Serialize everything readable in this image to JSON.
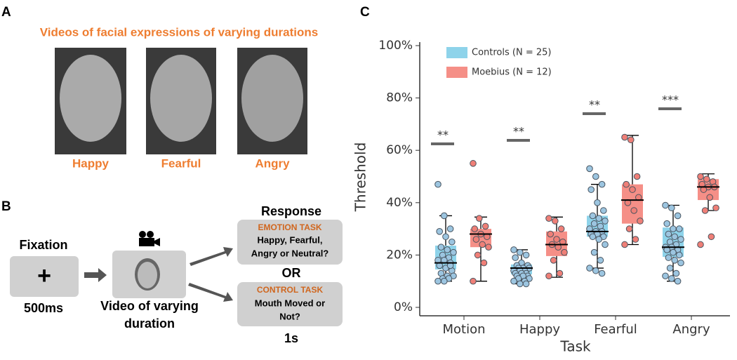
{
  "panel_a": {
    "label": "A",
    "title": "Videos of facial expressions of varying durations",
    "faces": [
      "Happy",
      "Fearful",
      "Angry"
    ]
  },
  "panel_b": {
    "label": "B",
    "fixation": "Fixation",
    "fixation_symbol": "+",
    "fixation_duration": "500ms",
    "video_caption": [
      "Video of varying",
      "duration"
    ],
    "response": "Response",
    "emotion_task": {
      "title": "EMOTION TASK",
      "lines": [
        "Happy, Fearful,",
        "Angry or Neutral?"
      ]
    },
    "or": "OR",
    "control_task": {
      "title": "CONTROL TASK",
      "lines": [
        "Mouth Moved or",
        "Not?"
      ]
    },
    "response_duration": "1s"
  },
  "chart_data": {
    "type": "box",
    "panel_label": "C",
    "xlabel": "Task",
    "ylabel": "Threshold",
    "categories": [
      "Motion",
      "Happy",
      "Fearful",
      "Angry"
    ],
    "ylim": [
      0,
      100
    ],
    "yticks": [
      {
        "value": 0,
        "label": "0%"
      },
      {
        "value": 20,
        "label": "20%"
      },
      {
        "value": 40,
        "label": "40%"
      },
      {
        "value": 60,
        "label": "60%"
      },
      {
        "value": 80,
        "label": "80%"
      },
      {
        "value": 100,
        "label": "100%"
      }
    ],
    "significance": [
      "**",
      "**",
      "**",
      "***"
    ],
    "legend": "upper left",
    "series": [
      {
        "name": "Controls (N = 25)",
        "color": "#8ed3ea",
        "point_color": "#9cc5e0",
        "boxes": [
          {
            "low": 10,
            "q1": 14.5,
            "median": 17,
            "q3": 23.6,
            "high": 35,
            "points": [
              47,
              35,
              30,
              29,
              27,
              25,
              23,
              22,
              21,
              20,
              19,
              18,
              18,
              17,
              16,
              15,
              14,
              13,
              12,
              12,
              11,
              11,
              10,
              10,
              16
            ]
          },
          {
            "low": 9,
            "q1": 12.6,
            "median": 15,
            "q3": 16.4,
            "high": 22,
            "points": [
              22,
              21,
              20,
              19,
              17,
              16,
              16,
              15,
              15,
              15,
              14,
              14,
              14,
              13,
              13,
              13,
              12,
              12,
              12,
              11,
              11,
              10,
              10,
              9,
              9
            ]
          },
          {
            "low": 15,
            "q1": 27,
            "median": 29,
            "q3": 35,
            "high": 47,
            "points": [
              53,
              50,
              47,
              45,
              40,
              37,
              35,
              34,
              33,
              32,
              31,
              30,
              29,
              29,
              28,
              28,
              27,
              27,
              26,
              24,
              21,
              18,
              15,
              14,
              13
            ]
          },
          {
            "low": 10,
            "q1": 19.3,
            "median": 23,
            "q3": 30.5,
            "high": 39,
            "points": [
              39,
              38,
              35,
              32,
              30,
              30,
              28,
              27,
              26,
              25,
              24,
              23,
              23,
              22,
              22,
              21,
              20,
              19,
              18,
              17,
              15,
              13,
              12,
              11,
              10
            ]
          }
        ]
      },
      {
        "name": "Moebius (N = 12)",
        "color": "#f58f87",
        "point_color": "#ef7f77",
        "boxes": [
          {
            "low": 10,
            "q1": 23,
            "median": 28,
            "q3": 30,
            "high": 34.5,
            "points": [
              55,
              34,
              31,
              30,
              28,
              27,
              26,
              24,
              23,
              20,
              17,
              10
            ]
          },
          {
            "low": 11.5,
            "q1": 19.6,
            "median": 24,
            "q3": 29,
            "high": 34.5,
            "points": [
              34,
              33,
              30,
              28,
              26,
              25,
              24,
              23,
              21,
              18,
              13,
              12
            ]
          },
          {
            "low": 24,
            "q1": 32,
            "median": 41,
            "q3": 47,
            "high": 65.7,
            "points": [
              65,
              64,
              50,
              47,
              45,
              42,
              40,
              37,
              33,
              30,
              26,
              24
            ]
          },
          {
            "low": 37,
            "q1": 41,
            "median": 46,
            "q3": 49,
            "high": 51,
            "points": [
              50,
              49,
              48,
              47,
              46,
              46,
              45,
              42,
              38,
              37,
              27,
              24
            ]
          }
        ]
      }
    ]
  }
}
